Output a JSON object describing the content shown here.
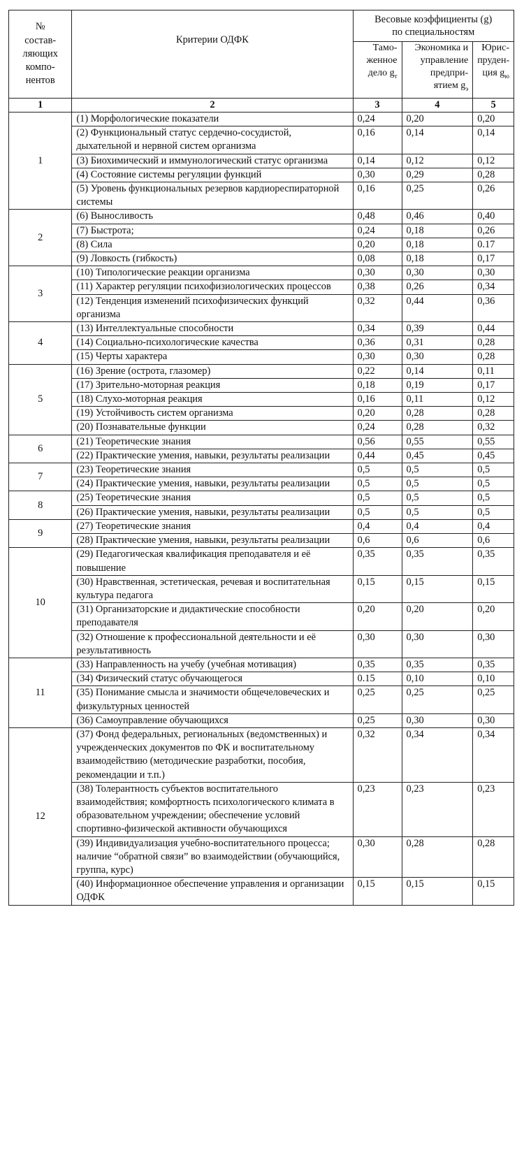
{
  "table": {
    "header": {
      "component": "№\nсостав-\nляющих\nкомпо-\nнентов",
      "criteria": "Критерии ОДФК",
      "weights": "Весовые коэффициенты  (g)\nпо специальностям",
      "specialties": [
        {
          "label": "Тамо-\nженное\nдело g",
          "subscript": "т"
        },
        {
          "label": "Экономика и\nуправление\nпредпри-\nятием g",
          "subscript": "э"
        },
        {
          "label": "Юрис-\nпруден-\nция g",
          "subscript": "ю"
        }
      ],
      "numbers": [
        1,
        2,
        3,
        4,
        5
      ]
    },
    "groups": [
      {
        "number": 1,
        "rows": [
          [
            "(1) Морфологические показатели",
            "0,24",
            "0,20",
            "0,20"
          ],
          [
            "(2) Функциональный статус сердечно-сосудистой, дыхательной и нервной систем организма",
            "0,16",
            "0,14",
            "0,14"
          ],
          [
            "(3) Биохимический и иммунологический статус организма",
            "0,14",
            "0,12",
            "0,12"
          ],
          [
            "(4) Состояние системы регуляции функций",
            "0,30",
            "0,29",
            "0,28"
          ],
          [
            "(5) Уровень функциональных резервов кардиореспираторной системы",
            "0,16",
            "0,25",
            "0,26"
          ]
        ]
      },
      {
        "number": 2,
        "rows": [
          [
            "(6) Выносливость",
            "0,48",
            "0,46",
            "0,40"
          ],
          [
            "(7) Быстрота;",
            "0,24",
            "0,18",
            "0,26"
          ],
          [
            "(8) Сила",
            "0,20",
            "0,18",
            "0.17"
          ],
          [
            "(9) Ловкость (гибкость)",
            "0,08",
            "0,18",
            "0,17"
          ]
        ]
      },
      {
        "number": 3,
        "rows": [
          [
            "(10) Типологические реакции организма",
            "0,30",
            "0,30",
            "0,30"
          ],
          [
            "(11) Характер регуляции психофизиологических процессов",
            "0,38",
            "0,26",
            "0,34"
          ],
          [
            "(12) Тенденция изменений психофизических функций организма",
            "0,32",
            "0,44",
            "0,36"
          ]
        ]
      },
      {
        "number": 4,
        "rows": [
          [
            "(13) Интеллектуальные способности",
            "0,34",
            "0,39",
            "0,44"
          ],
          [
            "(14) Социально-психологические качества",
            "0,36",
            "0,31",
            "0,28"
          ],
          [
            "(15) Черты характера",
            "0,30",
            "0,30",
            "0,28"
          ]
        ]
      },
      {
        "number": 5,
        "rows": [
          [
            "(16) Зрение (острота, глазомер)",
            "0,22",
            "0,14",
            "0,11"
          ],
          [
            "(17) Зрительно-моторная реакция",
            "0,18",
            "0,19",
            "0,17"
          ],
          [
            "(18) Слухо-моторная реакция",
            "0,16",
            "0,11",
            "0,12"
          ],
          [
            "(19) Устойчивость систем организма",
            "0,20",
            "0,28",
            "0,28"
          ],
          [
            "(20) Познавательные функции",
            "0,24",
            "0,28",
            "0,32"
          ]
        ]
      },
      {
        "number": 6,
        "rows": [
          [
            "(21) Теоретические знания",
            "0,56",
            "0,55",
            "0,55"
          ],
          [
            "(22) Практические умения, навыки, результаты реализации",
            "0,44",
            "0,45",
            "0,45"
          ]
        ]
      },
      {
        "number": 7,
        "rows": [
          [
            "(23) Теоретические знания",
            "0,5",
            "0,5",
            "0,5"
          ],
          [
            "(24) Практические умения, навыки, результаты реализации",
            "0,5",
            "0,5",
            "0,5"
          ]
        ]
      },
      {
        "number": 8,
        "rows": [
          [
            "(25) Теоретические знания",
            "0,5",
            "0,5",
            "0,5"
          ],
          [
            "(26) Практические умения, навыки, результаты реализации",
            "0,5",
            "0,5",
            "0,5"
          ]
        ]
      },
      {
        "number": 9,
        "rows": [
          [
            "(27) Теоретические знания",
            "0,4",
            "0,4",
            "0,4"
          ],
          [
            "(28)  Практические умения, навыки, результаты реализации",
            "0,6",
            "0,6",
            "0,6"
          ]
        ]
      },
      {
        "number": 10,
        "rows": [
          [
            "(29)  Педагогическая квалификация преподавателя и её повышение",
            "0,35",
            "0,35",
            "0,35"
          ],
          [
            "(30)  Нравственная, эстетическая, речевая и воспитательная культура педагога",
            "0,15",
            "0,15",
            "0,15"
          ],
          [
            "(31) Организаторские и дидактические способности преподавателя",
            "0,20",
            "0,20",
            "0,20"
          ],
          [
            "(32) Отношение к профессиональной деятельности и её результативность",
            "0,30",
            "0,30",
            "0,30"
          ]
        ]
      },
      {
        "number": 11,
        "rows": [
          [
            "(33)  Направленность на учебу (учебная мотивация)",
            "0,35",
            "0,35",
            "0,35"
          ],
          [
            "(34)  Физический статус обучающегося",
            "0.15",
            "0,10",
            "0,10"
          ],
          [
            "(35)  Понимание смысла и значимости общечеловеческих и физкультурных ценностей",
            "0,25",
            "0,25",
            "0,25"
          ],
          [
            "(36)  Самоуправление обучающихся",
            "0,25",
            "0,30",
            "0,30"
          ]
        ]
      },
      {
        "number": 12,
        "rows": [
          [
            "(37) Фонд федеральных, региональных (ведомственных) и учрежденческих документов по ФК и воспитательному взаимодействию (методические разработки, пособия, рекомендации и т.п.)",
            "0,32",
            "0,34",
            "0,34"
          ],
          [
            "(38)  Толерантность субъектов воспитательного взаимодействия; комфортность психологического климата в образовательном учреждении; обеспечение условий спортивно-физической активности обучающихся",
            "0,23",
            "0,23",
            "0,23"
          ],
          [
            "(39) Индивидуализация учебно-воспитательного процесса; наличие “обратной связи” во взаимодействии (обучающийся, группа, курс)",
            "0,30",
            "0,28",
            "0,28"
          ],
          [
            "(40)  Информационное обеспечение управления и организации  ОДФК",
            "0,15",
            "0,15",
            "0,15"
          ]
        ]
      }
    ]
  }
}
